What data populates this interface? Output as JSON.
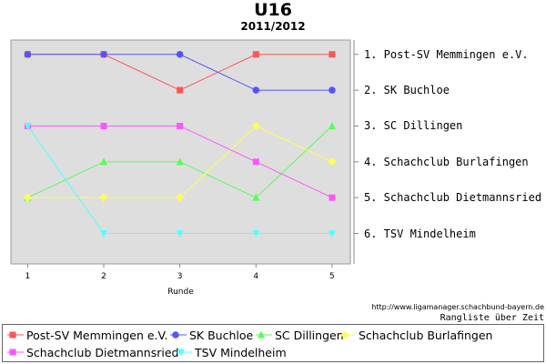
{
  "chart_data": {
    "type": "line",
    "title": "U16",
    "subtitle": "2011/2012",
    "xlabel": "Runde",
    "x": [
      1,
      2,
      3,
      4,
      5
    ],
    "ylim": [
      1,
      6
    ],
    "y_inverted": true,
    "grid": false,
    "background": "#dedede",
    "rank_labels": [
      "1. Post-SV Memmingen e.V.",
      "2. SK Buchloe",
      "3. SC Dillingen",
      "4. Schachclub Burlafingen",
      "5. Schachclub Dietmannsried",
      "6. TSV Mindelheim"
    ],
    "series": [
      {
        "name": "Post-SV Memmingen e.V.",
        "values": [
          1,
          1,
          2,
          1,
          1
        ],
        "color": "#ff5555",
        "marker": "square"
      },
      {
        "name": "SK Buchloe",
        "values": [
          1,
          1,
          1,
          2,
          2
        ],
        "color": "#5555ff",
        "marker": "circle"
      },
      {
        "name": "SC Dillingen",
        "values": [
          5,
          4,
          4,
          5,
          3
        ],
        "color": "#55ff55",
        "marker": "triangle-up"
      },
      {
        "name": "Schachclub Burlafingen",
        "values": [
          5,
          5,
          5,
          3,
          4
        ],
        "color": "#ffff55",
        "marker": "diamond"
      },
      {
        "name": "Schachclub Dietmannsried",
        "values": [
          3,
          3,
          3,
          4,
          5
        ],
        "color": "#ff55ff",
        "marker": "square"
      },
      {
        "name": "TSV Mindelheim",
        "values": [
          3,
          6,
          6,
          6,
          6
        ],
        "color": "#55ffff",
        "marker": "triangle-down"
      }
    ],
    "legend_position": "bottom"
  },
  "footer": {
    "url": "http://www.ligamanager.schachbund-bayern.de",
    "caption": "Rangliste über Zeit"
  }
}
